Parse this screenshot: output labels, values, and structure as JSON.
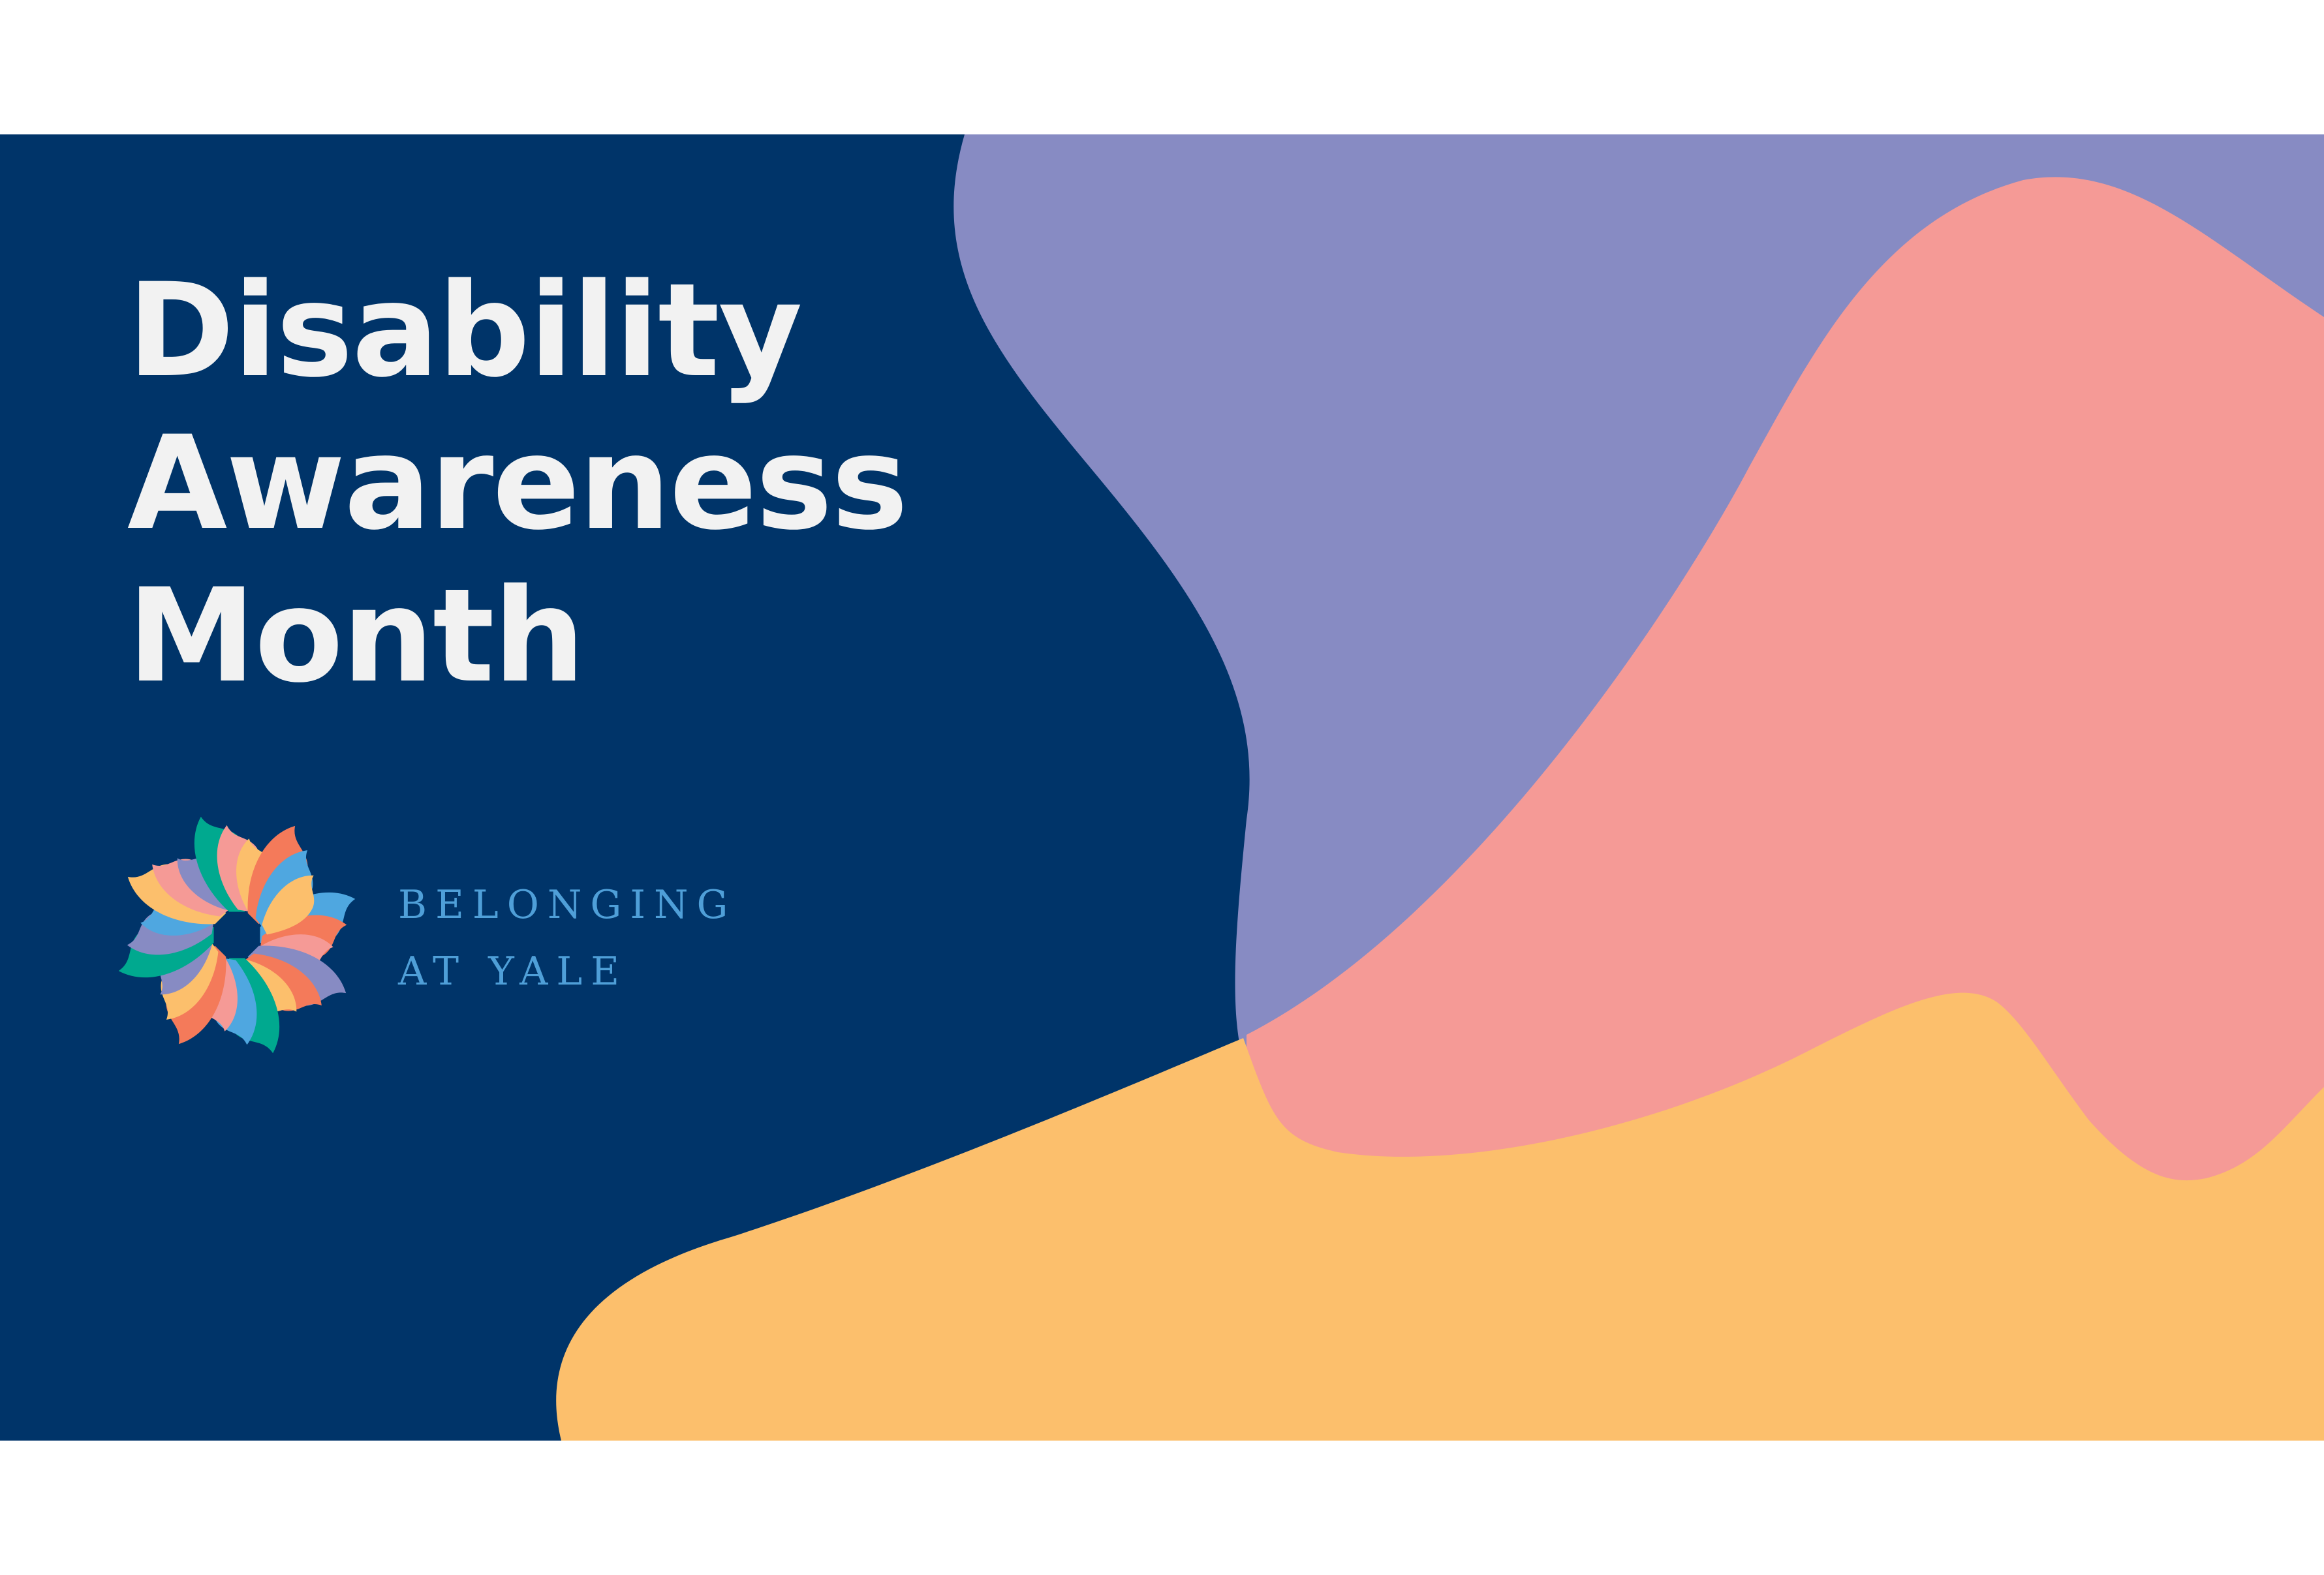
{
  "headline": {
    "line1": "Disability",
    "line2": "Awareness",
    "line3": "Month"
  },
  "logo": {
    "icon": "pinwheel-icon",
    "wordmark_line1": "BELONGING",
    "wordmark_line2": "AT YALE"
  },
  "colors": {
    "navy": "#003469",
    "lavender": "#878bc3",
    "coral": "#f59a96",
    "gold": "#fcbf6c",
    "wordmark": "#4f9fd8",
    "headline": "#f2f2f2"
  }
}
